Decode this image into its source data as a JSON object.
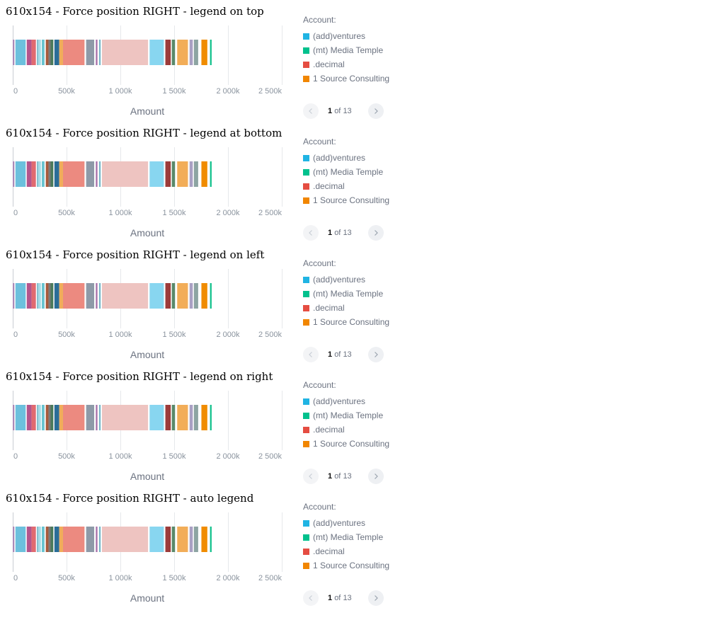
{
  "blocks": [
    {
      "title": "610x154 - Force position RIGHT - legend on top"
    },
    {
      "title": "610x154 - Force position RIGHT - legend at bottom"
    },
    {
      "title": "610x154 - Force position RIGHT - legend on left"
    },
    {
      "title": "610x154 - Force position RIGHT - legend on right"
    },
    {
      "title": "610x154 - Force position RIGHT - auto legend"
    }
  ],
  "legend": {
    "title": "Account:",
    "items": [
      {
        "label": "(add)ventures",
        "color": "#20b4e3"
      },
      {
        "label": "(mt) Media Temple",
        "color": "#00c18d"
      },
      {
        "label": ".decimal",
        "color": "#e54d42"
      },
      {
        "label": "1 Source Consulting",
        "color": "#f18600"
      }
    ],
    "pager": {
      "current": "1",
      "of_label": "of",
      "total": "13",
      "prev_icon": "chevron-left",
      "next_icon": "chevron-right"
    }
  },
  "chart_data": {
    "type": "bar",
    "orientation": "horizontal-stacked",
    "xlabel": "Amount",
    "xlim": [
      0,
      2500000
    ],
    "ticks": [
      0,
      500000,
      1000000,
      1500000,
      2000000,
      2500000
    ],
    "tick_labels": [
      "0",
      "500k",
      "1 000k",
      "1 500k",
      "2 000k",
      "2 500k"
    ],
    "grid": true,
    "segments": [
      {
        "value": 15000,
        "color": "#ab8ab8"
      },
      {
        "value": 10000,
        "color": "#ffffff"
      },
      {
        "value": 95000,
        "color": "#6cc0dd"
      },
      {
        "value": 10000,
        "color": "#ffffff"
      },
      {
        "value": 45000,
        "color": "#b4558c"
      },
      {
        "value": 40000,
        "color": "#e06a70"
      },
      {
        "value": 10000,
        "color": "#ffffff"
      },
      {
        "value": 12000,
        "color": "#7ab8c8"
      },
      {
        "value": 25000,
        "color": "#a8dbe6"
      },
      {
        "value": 8000,
        "color": "#ffffff"
      },
      {
        "value": 25000,
        "color": "#66c2cf"
      },
      {
        "value": 12000,
        "color": "#ffffff"
      },
      {
        "value": 25000,
        "color": "#a85a3b"
      },
      {
        "value": 20000,
        "color": "#7a7a7a"
      },
      {
        "value": 25000,
        "color": "#4a7a5a"
      },
      {
        "value": 10000,
        "color": "#ffffff"
      },
      {
        "value": 45000,
        "color": "#2b6d97"
      },
      {
        "value": 35000,
        "color": "#f0ad5a"
      },
      {
        "value": 200000,
        "color": "#ec8a80"
      },
      {
        "value": 15000,
        "color": "#ffffff"
      },
      {
        "value": 75000,
        "color": "#8e9aa8"
      },
      {
        "value": 15000,
        "color": "#ffffff"
      },
      {
        "value": 15000,
        "color": "#a66ea8"
      },
      {
        "value": 15000,
        "color": "#ffffff"
      },
      {
        "value": 15000,
        "color": "#7ab8c8"
      },
      {
        "value": 12000,
        "color": "#ffffff"
      },
      {
        "value": 428000,
        "color": "#eec4c1"
      },
      {
        "value": 15000,
        "color": "#ffffff"
      },
      {
        "value": 132000,
        "color": "#88d6f0"
      },
      {
        "value": 14000,
        "color": "#ffffff"
      },
      {
        "value": 50000,
        "color": "#9c3b3a"
      },
      {
        "value": 10000,
        "color": "#ffffff"
      },
      {
        "value": 30000,
        "color": "#5a8a6a"
      },
      {
        "value": 20000,
        "color": "#ffffff"
      },
      {
        "value": 100000,
        "color": "#f2ad58"
      },
      {
        "value": 15000,
        "color": "#ffffff"
      },
      {
        "value": 30000,
        "color": "#a9a0c3"
      },
      {
        "value": 10000,
        "color": "#ffffff"
      },
      {
        "value": 40000,
        "color": "#8da4a2"
      },
      {
        "value": 30000,
        "color": "#ffffff"
      },
      {
        "value": 55000,
        "color": "#f08c00"
      },
      {
        "value": 25000,
        "color": "#ffffff"
      },
      {
        "value": 15000,
        "color": "#12c18c"
      }
    ]
  }
}
